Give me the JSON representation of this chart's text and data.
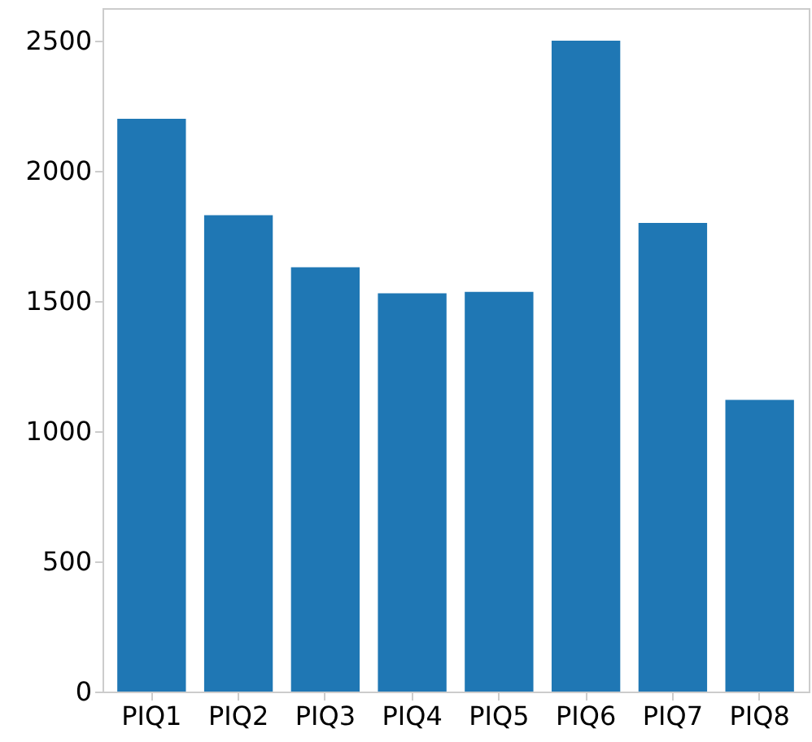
{
  "chart_data": {
    "type": "bar",
    "categories": [
      "PIQ1",
      "PIQ2",
      "PIQ3",
      "PIQ4",
      "PIQ5",
      "PIQ6",
      "PIQ7",
      "PIQ8"
    ],
    "values": [
      2200,
      1830,
      1630,
      1530,
      1535,
      2500,
      1800,
      1120
    ],
    "color": "#1f77b4",
    "ylim": [
      0,
      2625
    ],
    "yticks": [
      0,
      500,
      1000,
      1500,
      2000,
      2500
    ],
    "grid": false
  }
}
